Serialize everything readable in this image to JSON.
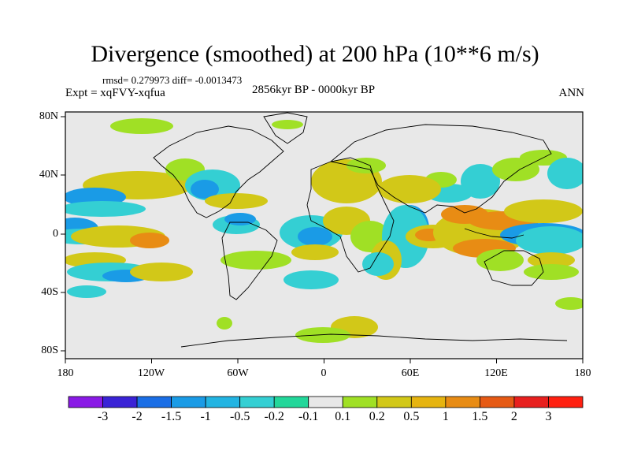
{
  "title": "Divergence (smoothed) at 200 hPa (10**6 m/s)",
  "stats": "rmsd= 0.279973 diff= -0.0013473",
  "experiment": "Expt = xqFVY-xqfua",
  "period": "2856kyr BP - 0000kyr BP",
  "season": "ANN",
  "lat_labels": [
    "80N",
    "40N",
    "0",
    "40S",
    "80S"
  ],
  "lon_labels": [
    "180",
    "120W",
    "60W",
    "0",
    "60E",
    "120E",
    "180"
  ],
  "colorbar": {
    "labels": [
      "-3",
      "-2",
      "-1.5",
      "-1",
      "-0.5",
      "-0.2",
      "-0.1",
      "0.1",
      "0.2",
      "0.5",
      "1",
      "1.5",
      "2",
      "3"
    ],
    "colors": [
      "#8a1ae6",
      "#3a23d6",
      "#1a6ee6",
      "#1a9be6",
      "#22b4e2",
      "#34cfd3",
      "#22d79a",
      "#e8e8e8",
      "#a0e025",
      "#d2c818",
      "#e6b410",
      "#e88c14",
      "#e65a14",
      "#e8201e",
      "#ff2010"
    ]
  },
  "map_colors": {
    "background": "#e8e8e8",
    "green": "#a0e025",
    "yellow": "#d2c818",
    "orange": "#e88c14",
    "cyan": "#34cfd3",
    "blue": "#1a9be6",
    "deepblue": "#1a6ee6"
  }
}
